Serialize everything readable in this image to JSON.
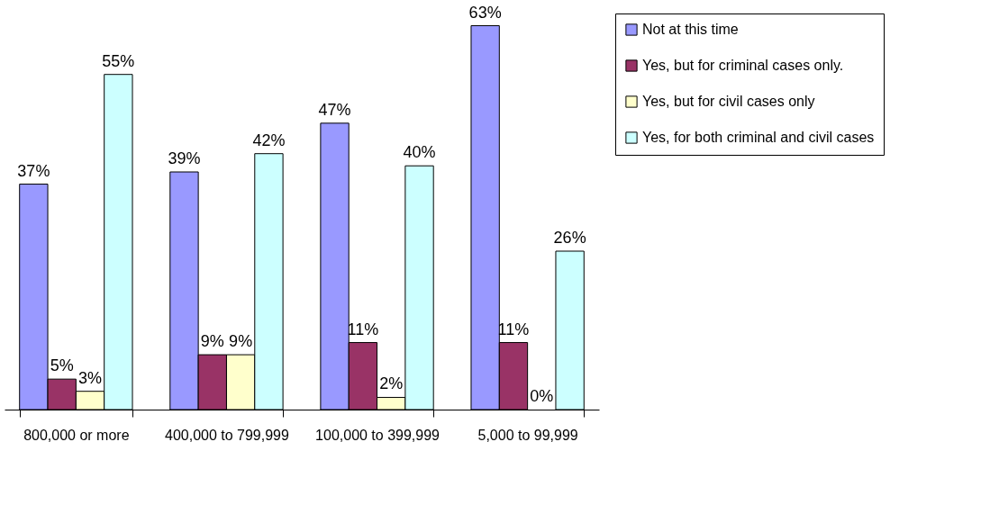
{
  "chart_data": {
    "type": "bar",
    "categories": [
      "800,000 or more",
      "400,000 to 799,999",
      "100,000 to 399,999",
      "5,000 to 99,999"
    ],
    "series": [
      {
        "name": "Not at this time",
        "color": "#9999ff",
        "values": [
          37,
          39,
          47,
          63
        ],
        "value_labels": [
          "37%",
          "39%",
          "47%",
          "63%"
        ]
      },
      {
        "name": "Yes, but for criminal cases only.",
        "color": "#993366",
        "values": [
          5,
          9,
          11,
          11
        ],
        "value_labels": [
          "5%",
          "9%",
          "11%",
          "11%"
        ]
      },
      {
        "name": "Yes, but for civil cases only",
        "color": "#ffffcc",
        "values": [
          3,
          9,
          2,
          0
        ],
        "value_labels": [
          "3%",
          "9%",
          "2%",
          "0%"
        ]
      },
      {
        "name": "Yes, for both criminal and civil cases",
        "color": "#ccffff",
        "values": [
          55,
          42,
          40,
          26
        ],
        "value_labels": [
          "55%",
          "42%",
          "40%",
          "26%"
        ]
      }
    ],
    "legend": "right",
    "tick_labels": "x"
  }
}
